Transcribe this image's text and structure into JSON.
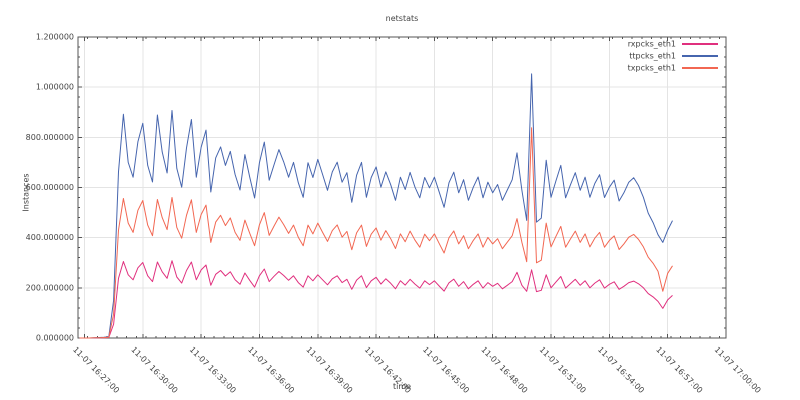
{
  "page": {
    "background": "#ffffff"
  },
  "chart_data": {
    "type": "line",
    "title": "netstats",
    "xlabel": "time",
    "ylabel": "Instances",
    "ylim": [
      0,
      1200000
    ],
    "grid": true,
    "legend_position": "top-right-inside",
    "colors": {
      "grid": "#e4e4e4",
      "axis": "#555555",
      "text": "#444444",
      "background": "#ffffff"
    },
    "y_ticks": {
      "values": [
        0,
        200000,
        400000,
        600000,
        800000,
        1000000,
        1200000
      ],
      "labels": [
        "0.000000",
        "200.000000",
        "400.000000",
        "600.000000",
        "800.000000",
        "1.000000",
        "1.200000"
      ],
      "minor_step": 40000
    },
    "x_axis": {
      "range_seconds": [
        0,
        2000
      ],
      "range_note": "offsets in seconds from 11-07 16:26:40 to 11-07 17:00:00",
      "minor_step_s": 30,
      "ticks": [
        {
          "offset_s": 20,
          "label": "11-07 16:27:00"
        },
        {
          "offset_s": 200,
          "label": "11-07 16:30:00"
        },
        {
          "offset_s": 380,
          "label": "11-07 16:33:00"
        },
        {
          "offset_s": 560,
          "label": "11-07 16:36:00"
        },
        {
          "offset_s": 740,
          "label": "11-07 16:39:00"
        },
        {
          "offset_s": 920,
          "label": "11-07 16:42:00"
        },
        {
          "offset_s": 1100,
          "label": "11-07 16:45:00"
        },
        {
          "offset_s": 1280,
          "label": "11-07 16:48:00"
        },
        {
          "offset_s": 1460,
          "label": "11-07 16:51:00"
        },
        {
          "offset_s": 1640,
          "label": "11-07 16:54:00"
        },
        {
          "offset_s": 1820,
          "label": "11-07 16:57:00"
        },
        {
          "offset_s": 2000,
          "label": "11-07 17:00:00"
        }
      ]
    },
    "sampling": {
      "start_offset_s": 5,
      "step_s": 15
    },
    "value_scale": 1000,
    "series": [
      {
        "name": "rxpcks_eth1",
        "color": "#e0307e",
        "values_k": [
          0,
          0,
          0,
          0,
          1,
          1,
          2,
          55,
          238,
          305,
          252,
          232,
          280,
          301,
          248,
          225,
          303,
          264,
          238,
          308,
          243,
          219,
          269,
          303,
          232,
          271,
          291,
          210,
          254,
          269,
          247,
          264,
          232,
          214,
          259,
          230,
          203,
          248,
          275,
          225,
          246,
          265,
          249,
          230,
          248,
          221,
          203,
          248,
          228,
          252,
          232,
          212,
          236,
          248,
          221,
          234,
          194,
          231,
          248,
          201,
          228,
          242,
          215,
          236,
          218,
          196,
          228,
          211,
          234,
          215,
          199,
          228,
          213,
          228,
          207,
          187,
          220,
          235,
          206,
          225,
          196,
          214,
          228,
          199,
          221,
          206,
          218,
          196,
          210,
          225,
          262,
          210,
          186,
          272,
          185,
          190,
          252,
          200,
          223,
          245,
          199,
          217,
          234,
          210,
          228,
          200,
          219,
          232,
          199,
          214,
          224,
          194,
          206,
          221,
          227,
          216,
          200,
          177,
          164,
          146,
          118,
          152,
          170
        ]
      },
      {
        "name": "ttpcks_eth1",
        "color": "#4665ae",
        "values_k": [
          0,
          0,
          0,
          1,
          2,
          3,
          5,
          150,
          663,
          892,
          700,
          641,
          782,
          856,
          688,
          622,
          889,
          742,
          658,
          907,
          676,
          601,
          758,
          871,
          641,
          760,
          829,
          582,
          718,
          762,
          688,
          744,
          652,
          590,
          731,
          642,
          558,
          698,
          781,
          629,
          690,
          751,
          702,
          641,
          700,
          619,
          561,
          699,
          640,
          712,
          652,
          589,
          662,
          701,
          621,
          659,
          541,
          649,
          700,
          561,
          640,
          682,
          601,
          662,
          611,
          549,
          641,
          592,
          660,
          601,
          559,
          640,
          599,
          641,
          581,
          521,
          619,
          661,
          579,
          631,
          549,
          601,
          642,
          559,
          621,
          579,
          612,
          549,
          590,
          631,
          738,
          589,
          469,
          1053,
          462,
          478,
          709,
          561,
          626,
          688,
          559,
          611,
          659,
          589,
          641,
          561,
          616,
          651,
          560,
          601,
          629,
          546,
          579,
          621,
          639,
          608,
          561,
          498,
          460,
          412,
          381,
          430,
          468
        ]
      },
      {
        "name": "txpcks_eth1",
        "color": "#f26752",
        "values_k": [
          0,
          0,
          0,
          1,
          1,
          2,
          3,
          95,
          430,
          556,
          458,
          421,
          509,
          548,
          450,
          408,
          552,
          480,
          432,
          560,
          441,
          398,
          489,
          551,
          421,
          492,
          530,
          381,
          462,
          489,
          448,
          479,
          421,
          389,
          470,
          418,
          368,
          451,
          500,
          409,
          446,
          482,
          452,
          417,
          450,
          402,
          368,
          450,
          415,
          458,
          421,
          385,
          428,
          451,
          402,
          425,
          352,
          419,
          450,
          365,
          414,
          439,
          390,
          428,
          396,
          357,
          415,
          384,
          426,
          390,
          362,
          414,
          388,
          415,
          376,
          339,
          400,
          427,
          375,
          408,
          356,
          389,
          415,
          362,
          401,
          375,
          396,
          356,
          382,
          408,
          476,
          381,
          304,
          838,
          300,
          310,
          458,
          363,
          405,
          445,
          362,
          395,
          426,
          381,
          415,
          363,
          398,
          421,
          362,
          389,
          407,
          353,
          375,
          402,
          413,
          393,
          363,
          322,
          298,
          266,
          186,
          258,
          288
        ]
      }
    ],
    "legend_entries": [
      "rxpcks_eth1",
      "ttpcks_eth1",
      "txpcks_eth1"
    ]
  }
}
